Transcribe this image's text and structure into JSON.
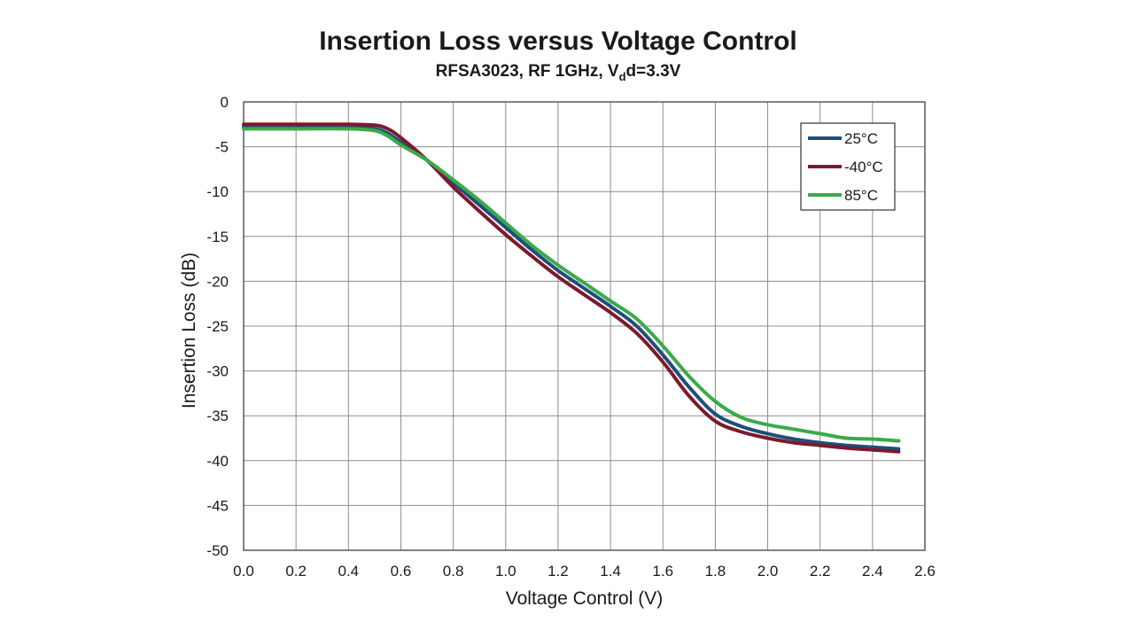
{
  "chart_data": {
    "type": "line",
    "title": "Insertion Loss versus Voltage Control",
    "subtitle_parts": {
      "pre": "RFSA3023, RF 1GHz, V",
      "sub": "d",
      "post": "d=3.3V"
    },
    "xlabel": "Voltage Control (V)",
    "ylabel": "Insertion Loss (dB)",
    "xlim": [
      0.0,
      2.6
    ],
    "ylim": [
      -50,
      0
    ],
    "x_ticks": [
      "0.0",
      "0.2",
      "0.4",
      "0.6",
      "0.8",
      "1.0",
      "1.2",
      "1.4",
      "1.6",
      "1.8",
      "2.0",
      "2.2",
      "2.4",
      "2.6"
    ],
    "y_ticks": [
      "0",
      "-5",
      "-10",
      "-15",
      "-20",
      "-25",
      "-30",
      "-35",
      "-40",
      "-45",
      "-50"
    ],
    "grid": true,
    "legend_position": "top-right",
    "series": [
      {
        "name": "25°C",
        "color": "#1f4e79",
        "x": [
          0.0,
          0.2,
          0.4,
          0.5,
          0.55,
          0.6,
          0.7,
          0.8,
          0.9,
          1.0,
          1.1,
          1.2,
          1.3,
          1.4,
          1.5,
          1.6,
          1.7,
          1.8,
          1.9,
          2.0,
          2.1,
          2.2,
          2.3,
          2.4,
          2.5
        ],
        "y": [
          -2.8,
          -2.8,
          -2.8,
          -3.0,
          -3.5,
          -4.5,
          -6.5,
          -9.0,
          -11.5,
          -14.0,
          -16.5,
          -18.8,
          -20.8,
          -22.8,
          -25.0,
          -28.2,
          -31.8,
          -34.8,
          -36.2,
          -37.0,
          -37.6,
          -38.0,
          -38.3,
          -38.5,
          -38.7
        ]
      },
      {
        "name": "-40°C",
        "color": "#7b1a2e",
        "x": [
          0.0,
          0.2,
          0.4,
          0.5,
          0.55,
          0.6,
          0.7,
          0.8,
          0.9,
          1.0,
          1.1,
          1.2,
          1.3,
          1.4,
          1.5,
          1.6,
          1.7,
          1.8,
          1.9,
          2.0,
          2.1,
          2.2,
          2.3,
          2.4,
          2.5
        ],
        "y": [
          -2.5,
          -2.5,
          -2.5,
          -2.6,
          -3.0,
          -4.0,
          -6.5,
          -9.5,
          -12.2,
          -14.8,
          -17.2,
          -19.5,
          -21.5,
          -23.5,
          -25.8,
          -29.0,
          -32.8,
          -35.6,
          -36.8,
          -37.5,
          -38.0,
          -38.3,
          -38.6,
          -38.8,
          -39.0
        ]
      },
      {
        "name": "85°C",
        "color": "#3aaa4a",
        "x": [
          0.0,
          0.2,
          0.4,
          0.5,
          0.55,
          0.6,
          0.7,
          0.8,
          0.9,
          1.0,
          1.1,
          1.2,
          1.3,
          1.4,
          1.5,
          1.6,
          1.7,
          1.8,
          1.9,
          2.0,
          2.1,
          2.2,
          2.3,
          2.4,
          2.5
        ],
        "y": [
          -3.0,
          -3.0,
          -3.0,
          -3.2,
          -3.8,
          -4.8,
          -6.5,
          -8.7,
          -11.0,
          -13.5,
          -16.0,
          -18.2,
          -20.2,
          -22.2,
          -24.2,
          -27.2,
          -30.6,
          -33.4,
          -35.2,
          -36.0,
          -36.5,
          -37.0,
          -37.5,
          -37.6,
          -37.8
        ]
      }
    ]
  }
}
